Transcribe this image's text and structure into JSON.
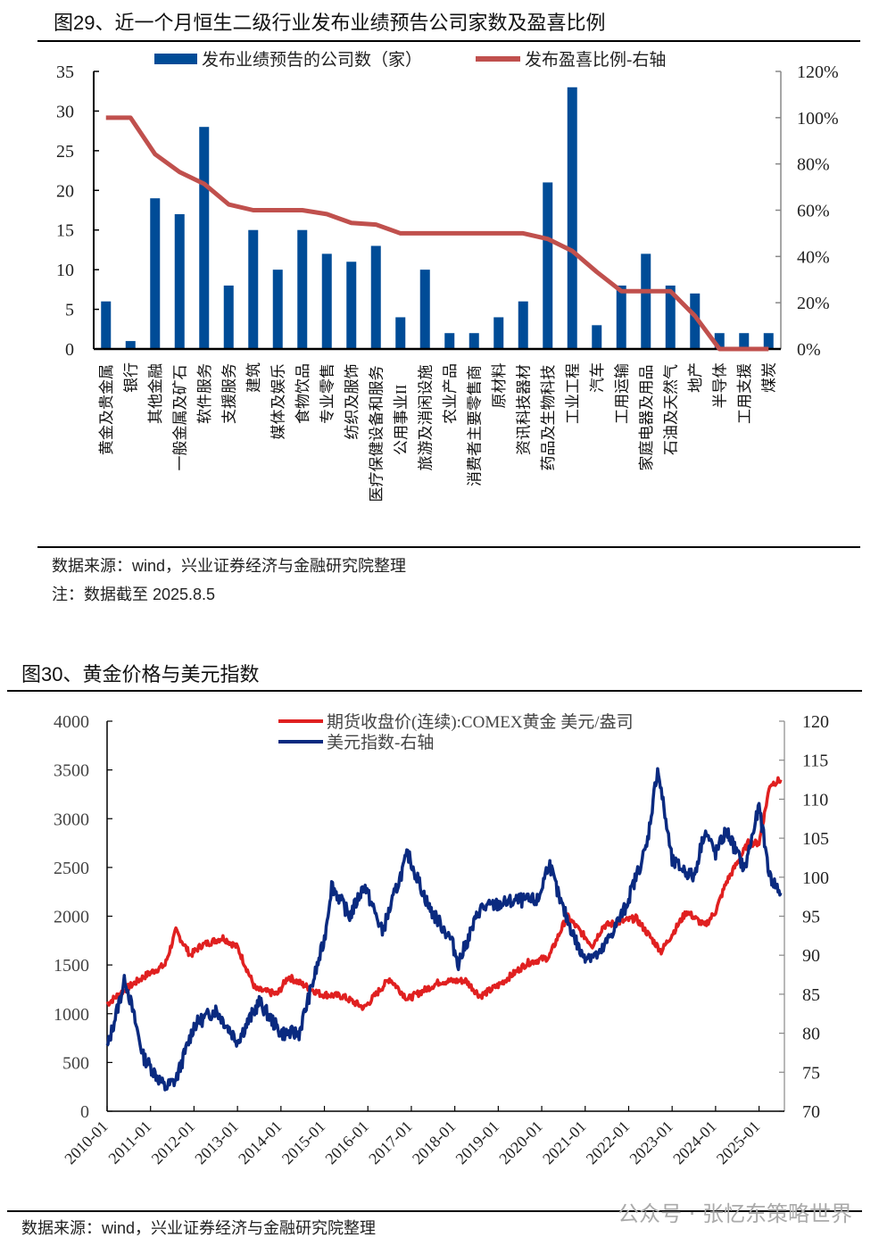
{
  "figure29": {
    "title": "图29、近一个月恒生二级行业发布业绩预告公司家数及盈喜比例",
    "source": "数据来源：wind，兴业证券经济与金融研究院整理",
    "note": "注：数据截至 2025.8.5"
  },
  "figure30": {
    "title": "图30、黄金价格与美元指数",
    "source": "数据来源：wind，兴业证券经济与金融研究院整理"
  },
  "watermark": "公众号 · 张忆东策略世界",
  "chart_data": [
    {
      "type": "bar",
      "title": "近一个月恒生二级行业发布业绩预告公司家数及盈喜比例",
      "categories": [
        "黄金及贵金属",
        "银行",
        "其他金融",
        "一般金属及矿石",
        "软件服务",
        "支援服务",
        "建筑",
        "媒体及娱乐",
        "食物饮品",
        "专业零售",
        "纺织及服饰",
        "医疗保健设备和服务",
        "公用事业II",
        "旅游及消闲设施",
        "农业产品",
        "消费者主要零售商",
        "原材料",
        "资讯科技器材",
        "药品及生物科技",
        "工业工程",
        "汽车",
        "工用运输",
        "家庭电器及用品",
        "石油及天然气",
        "地产",
        "半导体",
        "工用支援",
        "煤炭"
      ],
      "series": [
        {
          "name": "发布业绩预告的公司数（家）",
          "type": "bar",
          "axis": "left",
          "color": "#004c97",
          "values": [
            6,
            1,
            19,
            17,
            28,
            8,
            15,
            10,
            15,
            12,
            11,
            13,
            4,
            10,
            2,
            2,
            4,
            6,
            21,
            33,
            3,
            8,
            12,
            8,
            7,
            2,
            2,
            2
          ]
        },
        {
          "name": "发布盈喜比例-右轴",
          "type": "line",
          "axis": "right",
          "color": "#c0504d",
          "values": [
            100,
            100,
            84.2,
            76.5,
            71.4,
            62.5,
            60,
            60,
            60,
            58.3,
            54.5,
            53.8,
            50,
            50,
            50,
            50,
            50,
            50,
            47.6,
            42.4,
            33.3,
            25,
            25,
            25,
            14.3,
            0,
            0,
            0
          ]
        }
      ],
      "yleft": {
        "min": 0,
        "max": 35,
        "ticks": [
          "0",
          "5",
          "10",
          "15",
          "20",
          "25",
          "30",
          "35"
        ]
      },
      "yright": {
        "min": 0,
        "max": 120,
        "ticks": [
          "0%",
          "20%",
          "40%",
          "60%",
          "80%",
          "100%",
          "120%"
        ]
      },
      "legend": "top"
    },
    {
      "type": "line",
      "title": "黄金价格与美元指数",
      "x_ticks": [
        "2010-01",
        "2011-01",
        "2012-01",
        "2013-01",
        "2014-01",
        "2015-01",
        "2016-01",
        "2017-01",
        "2018-01",
        "2019-01",
        "2020-01",
        "2021-01",
        "2022-01",
        "2023-01",
        "2024-01",
        "2025-01"
      ],
      "x_range": [
        "2010-01",
        "2025-08"
      ],
      "series": [
        {
          "name": "期货收盘价(连续):COMEX黄金 美元/盎司",
          "axis": "left",
          "color": "#e02020",
          "points": [
            [
              "2010-01",
              1100
            ],
            [
              "2010-06",
              1250
            ],
            [
              "2010-12",
              1400
            ],
            [
              "2011-05",
              1500
            ],
            [
              "2011-08",
              1850
            ],
            [
              "2011-12",
              1600
            ],
            [
              "2012-03",
              1700
            ],
            [
              "2012-09",
              1780
            ],
            [
              "2013-01",
              1680
            ],
            [
              "2013-06",
              1250
            ],
            [
              "2013-12",
              1200
            ],
            [
              "2014-03",
              1380
            ],
            [
              "2014-12",
              1200
            ],
            [
              "2015-06",
              1180
            ],
            [
              "2015-12",
              1060
            ],
            [
              "2016-07",
              1360
            ],
            [
              "2016-12",
              1150
            ],
            [
              "2017-09",
              1330
            ],
            [
              "2018-04",
              1340
            ],
            [
              "2018-08",
              1180
            ],
            [
              "2019-01",
              1290
            ],
            [
              "2019-09",
              1520
            ],
            [
              "2020-03",
              1580
            ],
            [
              "2020-08",
              2000
            ],
            [
              "2021-03",
              1700
            ],
            [
              "2021-06",
              1900
            ],
            [
              "2022-03",
              1980
            ],
            [
              "2022-10",
              1640
            ],
            [
              "2023-05",
              2050
            ],
            [
              "2023-10",
              1900
            ],
            [
              "2024-01",
              2050
            ],
            [
              "2024-04",
              2350
            ],
            [
              "2024-10",
              2750
            ],
            [
              "2025-01",
              2750
            ],
            [
              "2025-04",
              3350
            ],
            [
              "2025-07",
              3400
            ]
          ]
        },
        {
          "name": "美元指数-右轴",
          "axis": "right",
          "color": "#0a2a80",
          "points": [
            [
              "2010-01",
              78
            ],
            [
              "2010-06",
              87
            ],
            [
              "2010-11",
              77
            ],
            [
              "2011-05",
              73
            ],
            [
              "2011-08",
              74
            ],
            [
              "2012-01",
              81
            ],
            [
              "2012-07",
              83
            ],
            [
              "2013-01",
              79
            ],
            [
              "2013-07",
              84
            ],
            [
              "2014-01",
              80
            ],
            [
              "2014-06",
              80
            ],
            [
              "2015-01",
              92
            ],
            [
              "2015-03",
              99
            ],
            [
              "2015-08",
              95
            ],
            [
              "2015-12",
              99
            ],
            [
              "2016-05",
              93
            ],
            [
              "2016-12",
              103
            ],
            [
              "2017-06",
              96
            ],
            [
              "2017-12",
              92
            ],
            [
              "2018-02",
              89
            ],
            [
              "2018-08",
              96
            ],
            [
              "2019-06",
              97
            ],
            [
              "2019-12",
              97
            ],
            [
              "2020-03",
              102
            ],
            [
              "2020-06",
              97
            ],
            [
              "2020-12",
              90
            ],
            [
              "2021-05",
              90
            ],
            [
              "2021-12",
              96
            ],
            [
              "2022-06",
              104
            ],
            [
              "2022-09",
              114
            ],
            [
              "2023-01",
              102
            ],
            [
              "2023-07",
              100
            ],
            [
              "2023-10",
              106
            ],
            [
              "2024-01",
              103
            ],
            [
              "2024-04",
              106
            ],
            [
              "2024-09",
              101
            ],
            [
              "2025-01",
              109
            ],
            [
              "2025-04",
              100
            ],
            [
              "2025-07",
              98
            ]
          ]
        }
      ],
      "yleft": {
        "min": 0,
        "max": 4000,
        "ticks": [
          "0",
          "500",
          "1000",
          "1500",
          "2000",
          "2500",
          "3000",
          "3500",
          "4000"
        ]
      },
      "yright": {
        "min": 70,
        "max": 120,
        "ticks": [
          "70",
          "75",
          "80",
          "85",
          "90",
          "95",
          "100",
          "105",
          "110",
          "115",
          "120"
        ]
      },
      "legend": "top"
    }
  ]
}
